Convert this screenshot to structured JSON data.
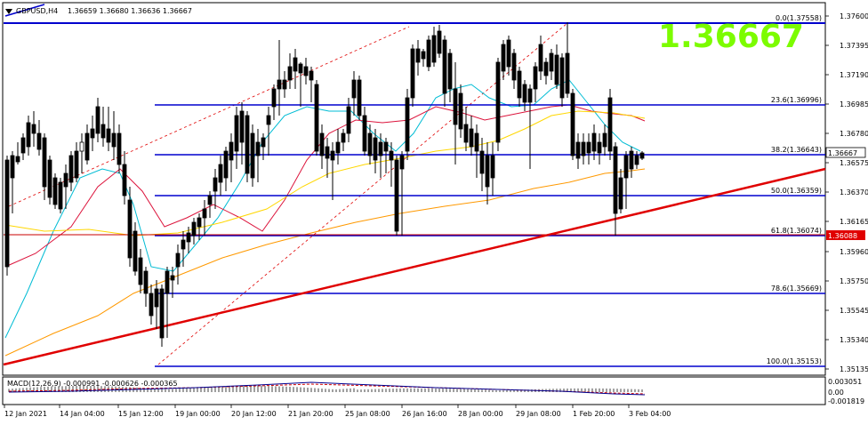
{
  "header": {
    "symbol": "GBPUSD,H4",
    "ohlc": "1.36659 1.36680 1.36636 1.36667"
  },
  "big_price": "1.36667",
  "price_axis": {
    "ticks": [
      "1.37600",
      "1.37395",
      "1.37190",
      "1.36985",
      "1.36780",
      "1.36575",
      "1.36370",
      "1.36165",
      "1.35960",
      "1.35750",
      "1.35545",
      "1.35340",
      "1.35135"
    ],
    "current_price": "1.36667",
    "marked_price": "1.36088"
  },
  "macd_axis": {
    "ticks": [
      "0.003051",
      "0.00",
      "-0.001819"
    ]
  },
  "macd_label": "MACD(12,26,9) -0.000991 -0.000626 -0.000365",
  "fibonacci": [
    {
      "level": "0.0",
      "price": "1.37558",
      "label": "0.0(1.37558)"
    },
    {
      "level": "23.6",
      "price": "1.36996",
      "label": "23.6(1.36996)"
    },
    {
      "level": "38.2",
      "price": "1.36643",
      "label": "38.2(1.36643)"
    },
    {
      "level": "50.0",
      "price": "1.36359",
      "label": "50.0(1.36359)"
    },
    {
      "level": "61.8",
      "price": "1.36074",
      "label": "61.8(1.36074)"
    },
    {
      "level": "78.6",
      "price": "1.35669",
      "label": "78.6(1.35669)"
    },
    {
      "level": "100.0",
      "price": "1.35153",
      "label": "100.0(1.35153)"
    }
  ],
  "time_axis": {
    "labels": [
      "12 Jan 2021",
      "14 Jan 04:00",
      "15 Jan 12:00",
      "19 Jan 00:00",
      "20 Jan 12:00",
      "21 Jan 20:00",
      "25 Jan 08:00",
      "26 Jan 16:00",
      "28 Jan 00:00",
      "29 Jan 08:00",
      "1 Feb 20:00",
      "3 Feb 04:00"
    ]
  },
  "colors": {
    "fib_line": "#0000cd",
    "trendline": "#e00000",
    "hline": "#c80000",
    "ma_fast": "#00bcd4",
    "ma_mid": "#dc143c",
    "ma_slow": "#ffd700",
    "ma_long": "#ff9900",
    "candle": "#000000",
    "big_price": "#7cfc00",
    "marked_bg": "#e00000"
  }
}
